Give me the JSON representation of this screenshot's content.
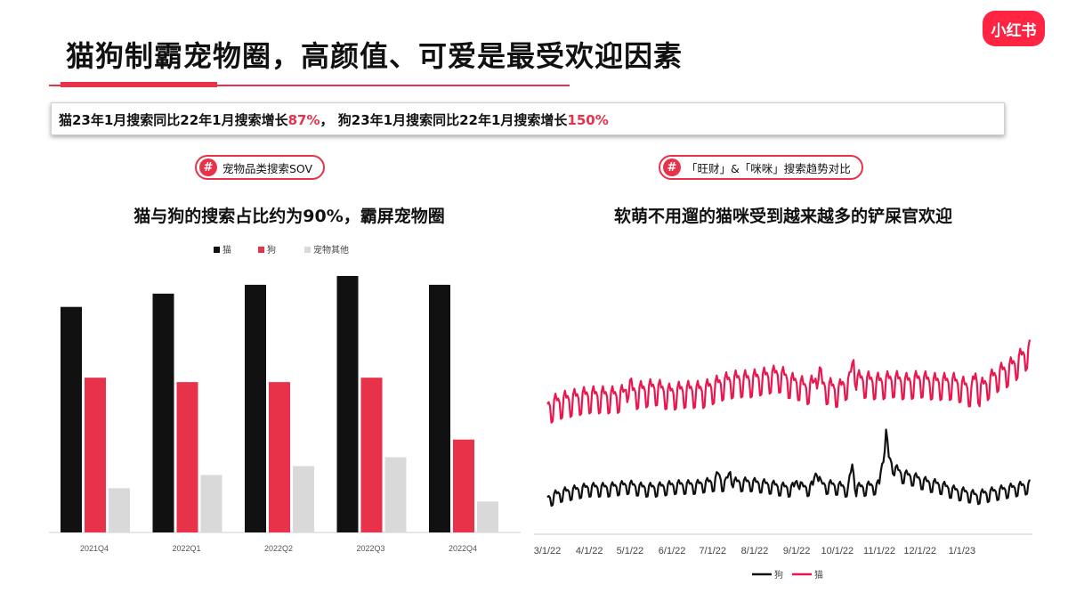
{
  "header": {
    "title": "猫狗制霸宠物圈，高颜值、可爱是最受欢迎因素",
    "logo_text": "小红书"
  },
  "banner": {
    "part1": "猫23年1月搜索同比22年1月搜索增长",
    "part1_value": "87%",
    "part2": "， 狗23年1月搜索同比22年1月搜索增长",
    "part2_value": "150%"
  },
  "left_panel": {
    "pill_icon": "#",
    "pill_label": "宠物品类搜索SOV",
    "subtitle": "猫与狗的搜索占比约为90%，霸屏宠物圈"
  },
  "right_panel": {
    "pill_icon": "#",
    "pill_label": "「旺财」&「咪咪」搜索趋势对比",
    "subtitle": "软萌不用遛的猫咪受到越来越多的铲屎官欢迎"
  },
  "colors": {
    "accent": "#e8324a",
    "black": "#111111",
    "gray": "#d9d9d9",
    "pink_line": "#e8174e"
  },
  "chart_data": [
    {
      "type": "bar",
      "categories": [
        "2021Q4",
        "2022Q1",
        "2022Q2",
        "2022Q3",
        "2022Q4"
      ],
      "series": [
        {
          "name": "猫",
          "color": "#111111",
          "values": [
            51,
            54,
            56,
            58,
            56
          ]
        },
        {
          "name": "狗",
          "color": "#e8324a",
          "values": [
            35,
            34,
            34,
            35,
            21
          ]
        },
        {
          "name": "宠物其他",
          "color": "#d9d9d9",
          "values": [
            10,
            13,
            15,
            17,
            7
          ]
        }
      ],
      "ylim": [
        0,
        60
      ],
      "legend": "top-left",
      "grid": false
    },
    {
      "type": "line",
      "x_ticks": [
        "3/1/22",
        "4/1/22",
        "5/1/22",
        "6/1/22",
        "7/1/22",
        "8/1/22",
        "9/1/22",
        "10/1/22",
        "11/1/22",
        "12/1/22",
        "1/1/23"
      ],
      "x_start": "2022-03-01",
      "x_end": "2023-02-20",
      "ylim": [
        0,
        100
      ],
      "legend": "bottom-center",
      "series": [
        {
          "name": "狗",
          "color": "#111111",
          "keyframes": [
            [
              0,
              13
            ],
            [
              10,
              15
            ],
            [
              20,
              16
            ],
            [
              30,
              17
            ],
            [
              45,
              17
            ],
            [
              60,
              18
            ],
            [
              70,
              17
            ],
            [
              80,
              17
            ],
            [
              95,
              18
            ],
            [
              110,
              18
            ],
            [
              120,
              19
            ],
            [
              130,
              19
            ],
            [
              150,
              19
            ],
            [
              165,
              18
            ],
            [
              175,
              17
            ],
            [
              185,
              17
            ],
            [
              190,
              17
            ],
            [
              200,
              18
            ],
            [
              210,
              18
            ],
            [
              220,
              17
            ],
            [
              230,
              17
            ],
            [
              245,
              18
            ],
            [
              250,
              38
            ],
            [
              252,
              28
            ],
            [
              257,
              24
            ],
            [
              262,
              22
            ],
            [
              270,
              21
            ],
            [
              280,
              19
            ],
            [
              290,
              18
            ],
            [
              300,
              16
            ],
            [
              310,
              15
            ],
            [
              316,
              14
            ],
            [
              325,
              15
            ],
            [
              335,
              16
            ],
            [
              345,
              17
            ],
            [
              355,
              18
            ],
            [
              365,
              20
            ],
            [
              370,
              22
            ],
            [
              380,
              20
            ],
            [
              385,
              26
            ],
            [
              391,
              19
            ]
          ],
          "spikes": [
            [
              126,
              3
            ],
            [
              135,
              4
            ],
            [
              185,
              4
            ],
            [
              199,
              7
            ],
            [
              225,
              8
            ]
          ]
        },
        {
          "name": "猫",
          "color": "#e8174e",
          "keyframes": [
            [
              0,
              47
            ],
            [
              10,
              49
            ],
            [
              20,
              50
            ],
            [
              30,
              51
            ],
            [
              40,
              51
            ],
            [
              50,
              51
            ],
            [
              60,
              52
            ],
            [
              70,
              53
            ],
            [
              80,
              54
            ],
            [
              90,
              52
            ],
            [
              100,
              53
            ],
            [
              115,
              53
            ],
            [
              125,
              55
            ],
            [
              130,
              56
            ],
            [
              140,
              57
            ],
            [
              150,
              57
            ],
            [
              160,
              58
            ],
            [
              170,
              59
            ],
            [
              175,
              58
            ],
            [
              180,
              56
            ],
            [
              185,
              56
            ],
            [
              190,
              54
            ],
            [
              195,
              55
            ],
            [
              200,
              55
            ],
            [
              210,
              54
            ],
            [
              215,
              53
            ],
            [
              220,
              56
            ],
            [
              230,
              57
            ],
            [
              245,
              56
            ],
            [
              255,
              57
            ],
            [
              265,
              56
            ],
            [
              275,
              57
            ],
            [
              285,
              56
            ],
            [
              300,
              56
            ],
            [
              310,
              54
            ],
            [
              316,
              52
            ],
            [
              325,
              56
            ],
            [
              332,
              59
            ],
            [
              340,
              61
            ],
            [
              345,
              63
            ],
            [
              355,
              68
            ],
            [
              360,
              70
            ],
            [
              363,
              75
            ],
            [
              370,
              72
            ],
            [
              375,
              70
            ],
            [
              380,
              72
            ],
            [
              385,
              70
            ],
            [
              391,
              61
            ]
          ],
          "spikes": [
            [
              60,
              5
            ],
            [
              200,
              8
            ],
            [
              226,
              8
            ],
            [
              316,
              6
            ],
            [
              362,
              18
            ],
            [
              381,
              16
            ],
            [
              370,
              9
            ],
            [
              375,
              9
            ]
          ]
        }
      ]
    }
  ]
}
